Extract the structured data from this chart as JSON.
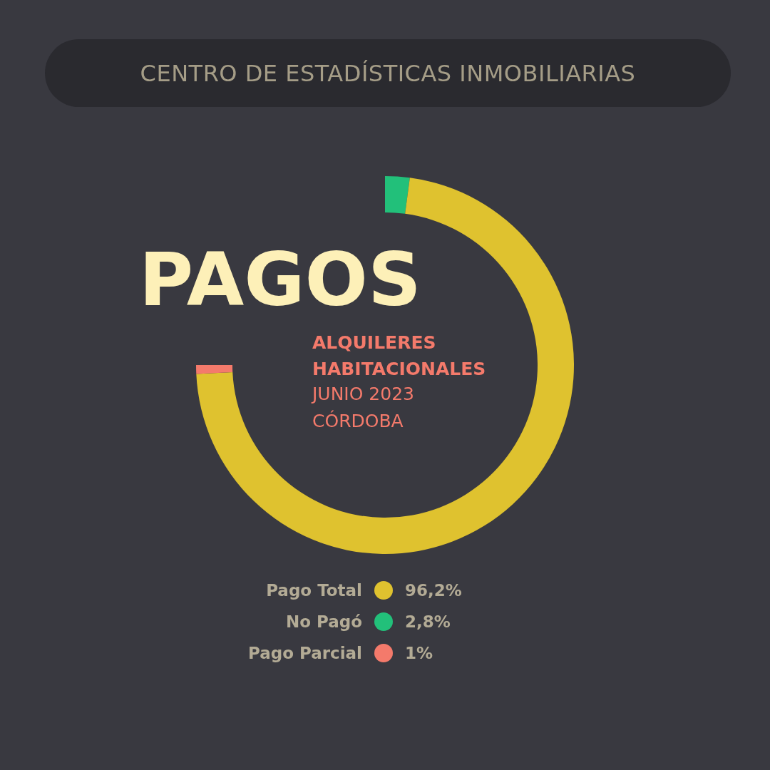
{
  "chart_data": {
    "type": "donut",
    "title": "PAGOS",
    "subtitle": "ALQUILERES HABITACIONALES",
    "annotations": [
      "CENTRO DE ESTADÍSTICAS INMOBILIARIAS",
      "JUNIO 2023",
      "CÓRDOBA"
    ],
    "categories": [
      "No Pagó",
      "Pago Total",
      "Pago Parcial"
    ],
    "values": [
      2.8,
      96.2,
      1
    ],
    "value_labels": [
      "2,8%",
      "96,2%",
      "1%"
    ],
    "colors": [
      "#22c07a",
      "#dfc22f",
      "#f47a6b"
    ],
    "legend": "bottom"
  }
}
